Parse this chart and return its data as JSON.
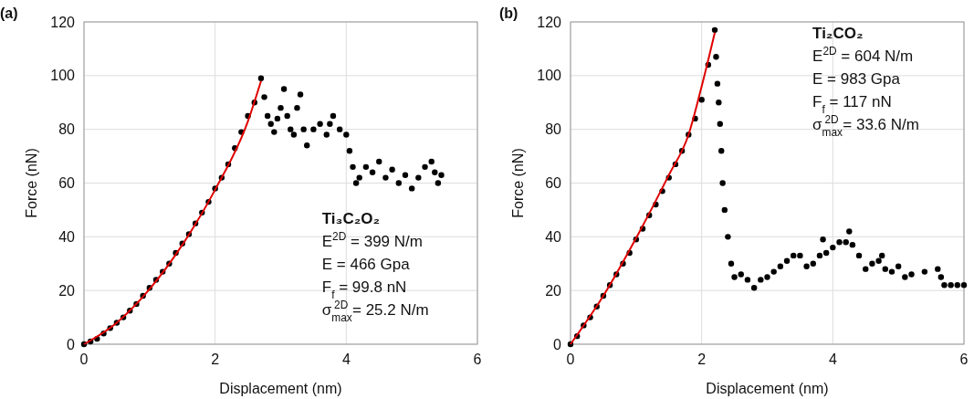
{
  "chart_data": [
    {
      "type": "scatter",
      "title": "(a)",
      "xlabel": "Displacement (nm)",
      "ylabel": "Force (nN)",
      "xlim": [
        0,
        6
      ],
      "ylim": [
        0,
        120
      ],
      "xticks": [
        0,
        2,
        4,
        6
      ],
      "yticks": [
        0,
        20,
        40,
        60,
        80,
        100,
        120
      ],
      "grid": true,
      "annotations": [
        "Ti₃C₂O₂",
        "E$^{2D}$ = 399 N/m",
        "E = 466 Gpa",
        "F$_{f}$ = 99.8 nN",
        "σ$_{max}$$^{2D}$ = 25.2 N/m"
      ],
      "series": [
        {
          "type": "scatter",
          "marker": "circle",
          "color": "#000000",
          "x": [
            0,
            0.1,
            0.2,
            0.3,
            0.4,
            0.5,
            0.6,
            0.7,
            0.8,
            0.9,
            1.0,
            1.1,
            1.2,
            1.3,
            1.4,
            1.5,
            1.6,
            1.7,
            1.8,
            1.9,
            2.0,
            2.1,
            2.2,
            2.3,
            2.4,
            2.5,
            2.6,
            2.7,
            2.75,
            2.8,
            2.85,
            2.9,
            2.95,
            3.0,
            3.05,
            3.1,
            3.15,
            3.2,
            3.25,
            3.3,
            3.35,
            3.4,
            3.5,
            3.6,
            3.7,
            3.75,
            3.8,
            3.9,
            4.0,
            4.05,
            4.1,
            4.15,
            4.2,
            4.3,
            4.4,
            4.5,
            4.6,
            4.7,
            4.8,
            4.9,
            5.0,
            5.1,
            5.2,
            5.3,
            5.35,
            5.4,
            5.45
          ],
          "values": [
            0,
            1,
            2,
            4,
            6,
            8,
            10,
            12.5,
            15,
            18,
            21,
            24,
            27,
            30,
            34,
            37.5,
            41,
            45,
            49,
            53,
            58,
            62,
            67,
            73,
            79,
            85,
            90,
            99,
            92,
            85,
            82,
            79,
            84,
            88,
            95,
            85,
            80,
            78,
            88,
            93,
            80,
            74,
            80,
            82,
            78,
            82,
            85,
            80,
            78,
            72,
            66,
            60,
            62,
            66,
            64,
            68,
            62,
            65,
            60,
            63,
            58,
            62,
            66,
            68,
            64,
            60,
            63
          ]
        },
        {
          "type": "line",
          "marker": "none",
          "line_style": "solid",
          "color": "#e00000",
          "x": [
            0,
            0.5,
            1,
            1.5,
            2,
            2.5,
            2.7
          ],
          "values": [
            0,
            8,
            20.5,
            37,
            57.5,
            83,
            98
          ]
        }
      ]
    },
    {
      "type": "scatter",
      "title": "(b)",
      "xlabel": "Displacement (nm)",
      "ylabel": "Force (nN)",
      "xlim": [
        0,
        6
      ],
      "ylim": [
        0,
        120
      ],
      "xticks": [
        0,
        2,
        4,
        6
      ],
      "yticks": [
        0,
        20,
        40,
        60,
        80,
        100,
        120
      ],
      "grid": true,
      "annotations": [
        "Ti₂CO₂",
        "E$^{2D}$ = 604 N/m",
        "E = 983 Gpa",
        "F$_{f}$ = 117 nN",
        "σ$_{max}$$^{2D}$ = 33.6 N/m"
      ],
      "series": [
        {
          "type": "scatter",
          "marker": "circle",
          "color": "#000000",
          "x": [
            0,
            0.1,
            0.2,
            0.3,
            0.4,
            0.5,
            0.6,
            0.7,
            0.8,
            0.9,
            1.0,
            1.1,
            1.2,
            1.3,
            1.4,
            1.5,
            1.6,
            1.7,
            1.8,
            1.9,
            2.0,
            2.1,
            2.2,
            2.22,
            2.24,
            2.26,
            2.28,
            2.3,
            2.32,
            2.35,
            2.4,
            2.45,
            2.5,
            2.6,
            2.7,
            2.8,
            2.9,
            3.0,
            3.1,
            3.2,
            3.3,
            3.4,
            3.5,
            3.6,
            3.7,
            3.8,
            3.85,
            3.9,
            4.0,
            4.1,
            4.2,
            4.25,
            4.3,
            4.4,
            4.5,
            4.6,
            4.7,
            4.75,
            4.8,
            4.9,
            5.0,
            5.1,
            5.2,
            5.4,
            5.6,
            5.65,
            5.7,
            5.8,
            5.9,
            6.0
          ],
          "values": [
            0,
            3,
            7,
            10,
            14,
            18,
            22,
            26,
            30,
            34,
            39,
            43,
            48,
            52,
            57,
            62,
            67,
            72,
            78,
            84,
            91,
            104,
            117,
            107,
            97,
            90,
            82,
            72,
            60,
            50,
            40,
            30,
            25,
            26,
            24,
            21,
            24,
            25,
            27,
            29,
            31,
            33,
            33,
            29,
            30,
            33,
            39,
            34,
            36,
            38,
            38,
            42,
            37,
            33,
            28,
            30,
            31,
            33,
            28,
            27,
            29,
            25,
            26,
            27,
            28,
            25,
            22,
            22,
            22,
            22
          ]
        },
        {
          "type": "line",
          "marker": "none",
          "line_style": "solid",
          "color": "#e00000",
          "x": [
            0,
            0.5,
            1,
            1.5,
            1.8,
            2,
            2.2
          ],
          "values": [
            0,
            18,
            39.5,
            63,
            78,
            96,
            116
          ]
        }
      ]
    }
  ]
}
